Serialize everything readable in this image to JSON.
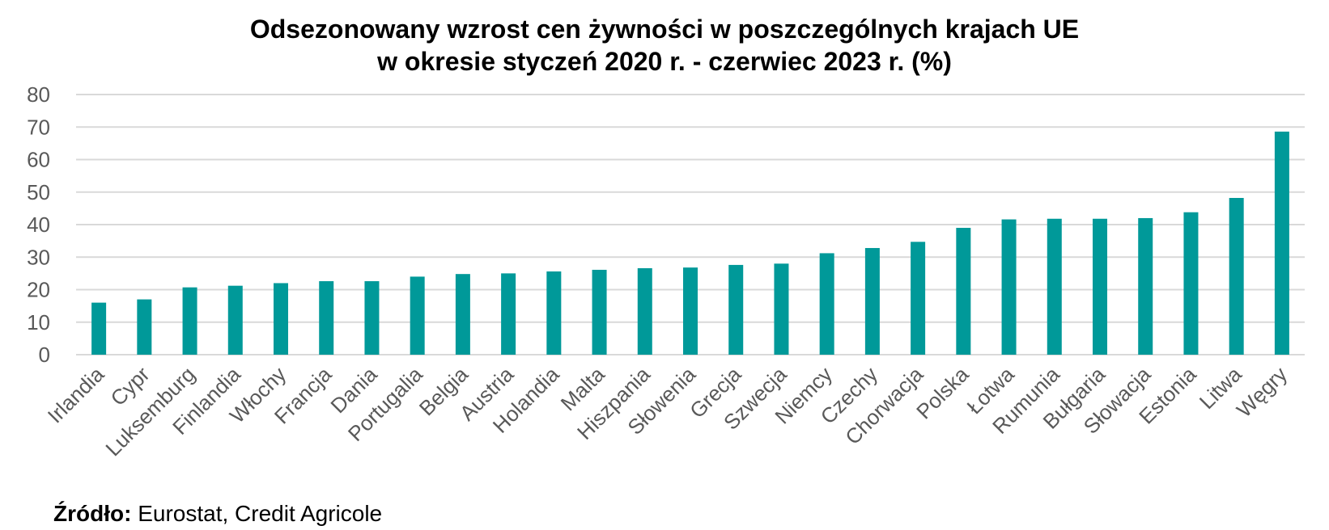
{
  "chart_data": {
    "type": "bar",
    "title_line1": "Odsezonowany wzrost cen żywności w poszczególnych krajach UE",
    "title_line2": "w okresie styczeń 2020 r. - czerwiec 2023 r. (%)",
    "categories": [
      "Irlandia",
      "Cypr",
      "Luksemburg",
      "Finlandia",
      "Włochy",
      "Francja",
      "Dania",
      "Portugalia",
      "Belgia",
      "Austria",
      "Holandia",
      "Malta",
      "Hiszpania",
      "Słowenia",
      "Grecja",
      "Szwecja",
      "Niemcy",
      "Czechy",
      "Chorwacja",
      "Polska",
      "Łotwa",
      "Rumunia",
      "Bułgaria",
      "Słowacja",
      "Estonia",
      "Litwa",
      "Węgry"
    ],
    "values": [
      16.0,
      17.0,
      20.7,
      21.2,
      22.0,
      22.6,
      22.6,
      24.0,
      24.8,
      25.0,
      25.6,
      26.1,
      26.6,
      26.8,
      27.6,
      28.0,
      31.2,
      32.8,
      34.7,
      39.0,
      41.6,
      41.8,
      41.8,
      42.0,
      43.8,
      48.2,
      68.6
    ],
    "yticks": [
      0,
      10,
      20,
      30,
      40,
      50,
      60,
      70,
      80
    ],
    "ylim": [
      0,
      80
    ],
    "xlabel": "",
    "ylabel": "",
    "bar_color": "#009999",
    "grid": true
  },
  "source": {
    "label": "Źródło:",
    "text": " Eurostat, Credit Agricole"
  }
}
